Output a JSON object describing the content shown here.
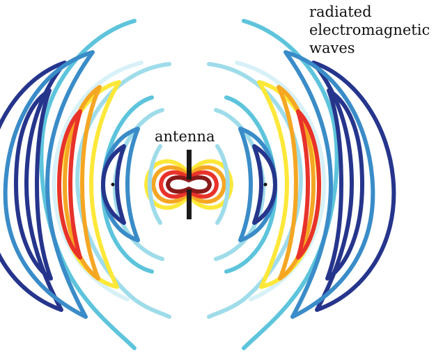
{
  "labels": {
    "antenna": "antenna",
    "waves": [
      "radiated",
      "electromagnetic",
      "waves"
    ]
  },
  "colors": {
    "dark_red": "#8b1a1a",
    "red": "#e8322a",
    "orange": "#f5a623",
    "yellow": "#fde83a",
    "pale_cyan": "#d8f1f8",
    "light_cyan": "#9fdcea",
    "cyan": "#5dc4dc",
    "blue": "#3a8cc8",
    "navy": "#26358c",
    "antenna": "#1a1a1a"
  }
}
